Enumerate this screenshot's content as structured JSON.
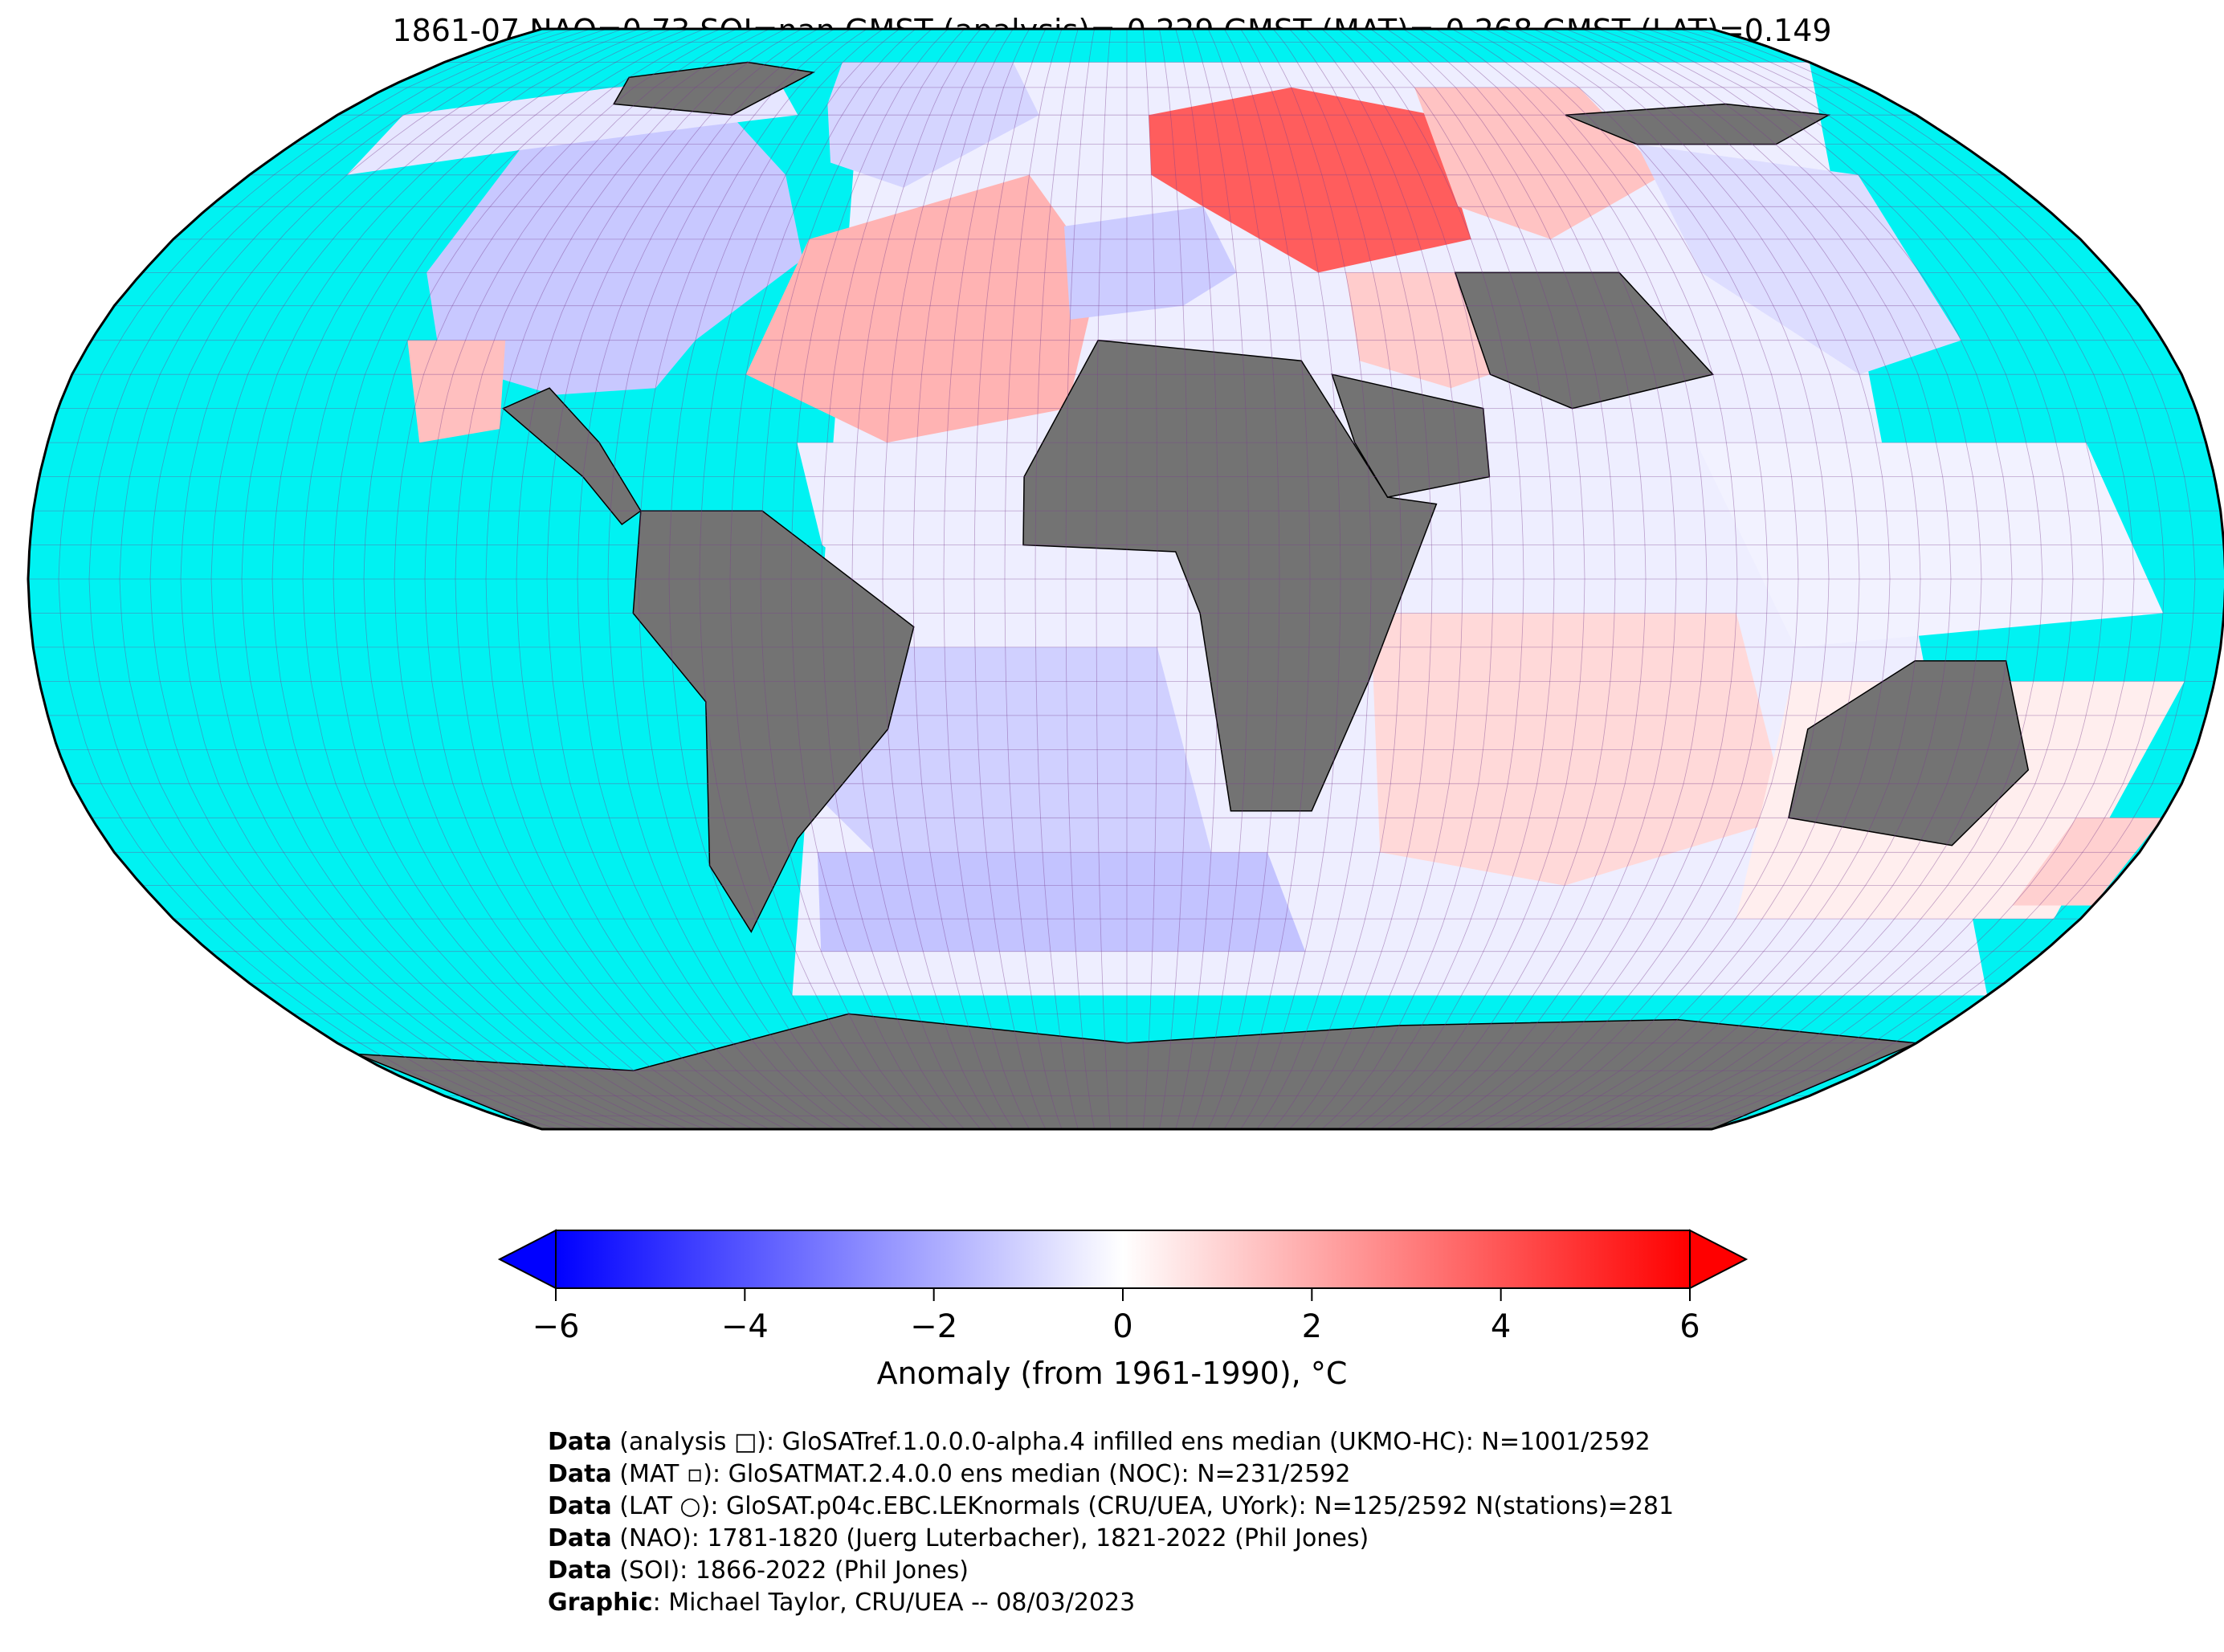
{
  "title": "1861-07 NAO=0.73 SOI=nan GMST (analysis)=-0.229 GMST (MAT)=-0.268 GMST (LAT)=0.149",
  "colorbar": {
    "label": "Anomaly (from 1961-1990), °C",
    "ticks": [
      "−6",
      "−4",
      "−2",
      "0",
      "2",
      "4",
      "6"
    ],
    "tick_values": [
      -6,
      -4,
      -2,
      0,
      2,
      4,
      6
    ],
    "range": [
      -6,
      6
    ],
    "colors": {
      "min": "#0000ff",
      "mid": "#ffffff",
      "max": "#ff0000"
    }
  },
  "map": {
    "projection": "robinson",
    "ocean_color": "#00f2f2",
    "land_nodata_color": "#737373",
    "grid_color": "#7a3f8f",
    "grid_resolution_deg": 5,
    "anomaly_regions": [
      {
        "name": "north-america",
        "value": -1.3
      },
      {
        "name": "canadian-arctic",
        "value": -0.6
      },
      {
        "name": "greenland",
        "value": -1.0
      },
      {
        "name": "north-atlantic",
        "value": 1.8
      },
      {
        "name": "western-europe",
        "value": -1.2
      },
      {
        "name": "scandinavia-russia",
        "value": 3.8
      },
      {
        "name": "siberia",
        "value": 1.4
      },
      {
        "name": "central-asia",
        "value": 1.2
      },
      {
        "name": "east-asia",
        "value": -0.8
      },
      {
        "name": "tropical-atlantic",
        "value": -0.4
      },
      {
        "name": "south-atlantic",
        "value": -1.1
      },
      {
        "name": "southern-ocean-atlantic",
        "value": -1.4
      },
      {
        "name": "indian-ocean",
        "value": 0.9
      },
      {
        "name": "tropical-pacific-west",
        "value": -0.3
      },
      {
        "name": "south-pacific-west",
        "value": 0.4
      },
      {
        "name": "new-zealand",
        "value": 1.1
      },
      {
        "name": "baja-california",
        "value": 1.5
      }
    ]
  },
  "credits": [
    {
      "label": "Data",
      "text": " (analysis □): GloSATref.1.0.0.0-alpha.4 infilled ens median (UKMO-HC): N=1001/2592"
    },
    {
      "label": "Data",
      "text": " (MAT ▫): GloSATMAT.2.4.0.0 ens median (NOC): N=231/2592"
    },
    {
      "label": "Data",
      "text": " (LAT ○): GloSAT.p04c.EBC.LEKnormals (CRU/UEA, UYork): N=125/2592 N(stations)=281"
    },
    {
      "label": "Data",
      "text": " (NAO): 1781-1820 (Juerg Luterbacher), 1821-2022 (Phil Jones)"
    },
    {
      "label": "Data",
      "text": " (SOI): 1866-2022 (Phil Jones)"
    },
    {
      "label": "Graphic",
      "text": ": Michael Taylor, CRU/UEA -- 08/03/2023"
    }
  ]
}
